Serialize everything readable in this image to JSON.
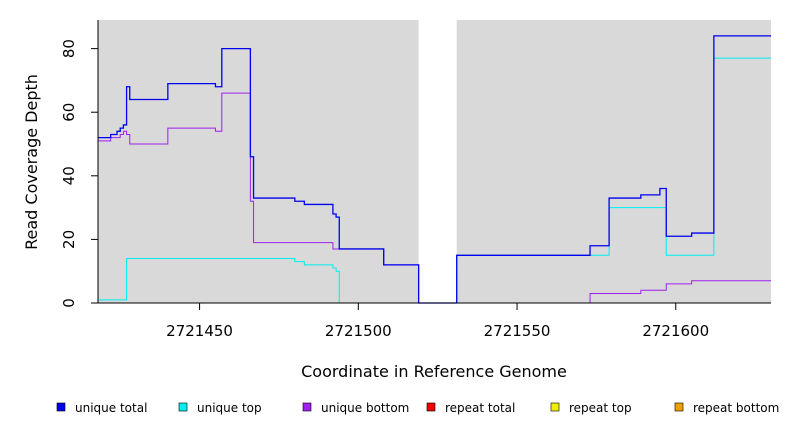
{
  "chart_data": {
    "type": "line",
    "xlabel": "Coordinate in Reference Genome",
    "ylabel": "Read Coverage Depth",
    "xlim": [
      2721418,
      2721630
    ],
    "ylim": [
      0,
      89
    ],
    "x_ticks": [
      2721450,
      2721500,
      2721550,
      2721600
    ],
    "x_tick_labels": [
      "2721450",
      "2721500",
      "2721550",
      "2721600"
    ],
    "y_ticks": [
      0,
      20,
      40,
      60,
      80
    ],
    "y_tick_labels": [
      "0",
      "20",
      "40",
      "60",
      "80"
    ],
    "background": "#d9d9d9",
    "gap": [
      2721519,
      2721531
    ],
    "legend_position": "bottom",
    "series": [
      {
        "name": "unique total",
        "color": "#0000ee",
        "points": [
          [
            2721418,
            52
          ],
          [
            2721422,
            52
          ],
          [
            2721422,
            53
          ],
          [
            2721424,
            53
          ],
          [
            2721424,
            54
          ],
          [
            2721425,
            54
          ],
          [
            2721425,
            55
          ],
          [
            2721426,
            55
          ],
          [
            2721426,
            56
          ],
          [
            2721427,
            56
          ],
          [
            2721427,
            68
          ],
          [
            2721428,
            68
          ],
          [
            2721428,
            64
          ],
          [
            2721440,
            64
          ],
          [
            2721440,
            69
          ],
          [
            2721455,
            69
          ],
          [
            2721455,
            68
          ],
          [
            2721457,
            68
          ],
          [
            2721457,
            80
          ],
          [
            2721466,
            80
          ],
          [
            2721466,
            46
          ],
          [
            2721467,
            46
          ],
          [
            2721467,
            33
          ],
          [
            2721480,
            33
          ],
          [
            2721480,
            32
          ],
          [
            2721483,
            32
          ],
          [
            2721483,
            31
          ],
          [
            2721492,
            31
          ],
          [
            2721492,
            28
          ],
          [
            2721493,
            28
          ],
          [
            2721493,
            27
          ],
          [
            2721494,
            27
          ],
          [
            2721494,
            17
          ],
          [
            2721508,
            17
          ],
          [
            2721508,
            12
          ],
          [
            2721519,
            12
          ],
          [
            2721519,
            0
          ],
          [
            2721531,
            0
          ],
          [
            2721531,
            15
          ],
          [
            2721573,
            15
          ],
          [
            2721573,
            18
          ],
          [
            2721579,
            18
          ],
          [
            2721579,
            33
          ],
          [
            2721589,
            33
          ],
          [
            2721589,
            34
          ],
          [
            2721595,
            34
          ],
          [
            2721595,
            36
          ],
          [
            2721597,
            36
          ],
          [
            2721597,
            21
          ],
          [
            2721605,
            21
          ],
          [
            2721605,
            22
          ],
          [
            2721612,
            22
          ],
          [
            2721612,
            84
          ],
          [
            2721630,
            84
          ]
        ]
      },
      {
        "name": "unique top",
        "color": "#00eeee",
        "points": [
          [
            2721418,
            1
          ],
          [
            2721427,
            1
          ],
          [
            2721427,
            14
          ],
          [
            2721480,
            14
          ],
          [
            2721480,
            13
          ],
          [
            2721483,
            13
          ],
          [
            2721483,
            12
          ],
          [
            2721492,
            12
          ],
          [
            2721492,
            11
          ],
          [
            2721493,
            11
          ],
          [
            2721493,
            10
          ],
          [
            2721494,
            10
          ],
          [
            2721494,
            0
          ],
          [
            2721519,
            0
          ],
          [
            2721531,
            0
          ],
          [
            2721531,
            15
          ],
          [
            2721579,
            15
          ],
          [
            2721579,
            30
          ],
          [
            2721597,
            30
          ],
          [
            2721597,
            15
          ],
          [
            2721612,
            15
          ],
          [
            2721612,
            77
          ],
          [
            2721630,
            77
          ]
        ]
      },
      {
        "name": "unique bottom",
        "color": "#a020f0",
        "points": [
          [
            2721418,
            51
          ],
          [
            2721422,
            51
          ],
          [
            2721422,
            52
          ],
          [
            2721425,
            52
          ],
          [
            2721425,
            53
          ],
          [
            2721426,
            53
          ],
          [
            2721426,
            54
          ],
          [
            2721427,
            54
          ],
          [
            2721427,
            53
          ],
          [
            2721428,
            53
          ],
          [
            2721428,
            50
          ],
          [
            2721440,
            50
          ],
          [
            2721440,
            55
          ],
          [
            2721455,
            55
          ],
          [
            2721455,
            54
          ],
          [
            2721457,
            54
          ],
          [
            2721457,
            66
          ],
          [
            2721466,
            66
          ],
          [
            2721466,
            32
          ],
          [
            2721467,
            32
          ],
          [
            2721467,
            19
          ],
          [
            2721492,
            19
          ],
          [
            2721492,
            17
          ],
          [
            2721494,
            17
          ],
          [
            2721494,
            17
          ],
          [
            2721508,
            17
          ],
          [
            2721508,
            12
          ],
          [
            2721519,
            12
          ],
          [
            2721519,
            0
          ],
          [
            2721531,
            0
          ],
          [
            2721573,
            0
          ],
          [
            2721573,
            3
          ],
          [
            2721589,
            3
          ],
          [
            2721589,
            4
          ],
          [
            2721597,
            4
          ],
          [
            2721597,
            6
          ],
          [
            2721605,
            6
          ],
          [
            2721605,
            7
          ],
          [
            2721630,
            7
          ]
        ]
      },
      {
        "name": "repeat total",
        "color": "#ee0000",
        "points": [
          [
            2721418,
            0
          ],
          [
            2721630,
            0
          ]
        ]
      },
      {
        "name": "repeat top",
        "color": "#eeee00",
        "points": [
          [
            2721418,
            0
          ],
          [
            2721630,
            0
          ]
        ]
      },
      {
        "name": "repeat bottom",
        "color": "#eea000",
        "points": [
          [
            2721418,
            0
          ],
          [
            2721630,
            0
          ]
        ]
      }
    ]
  }
}
